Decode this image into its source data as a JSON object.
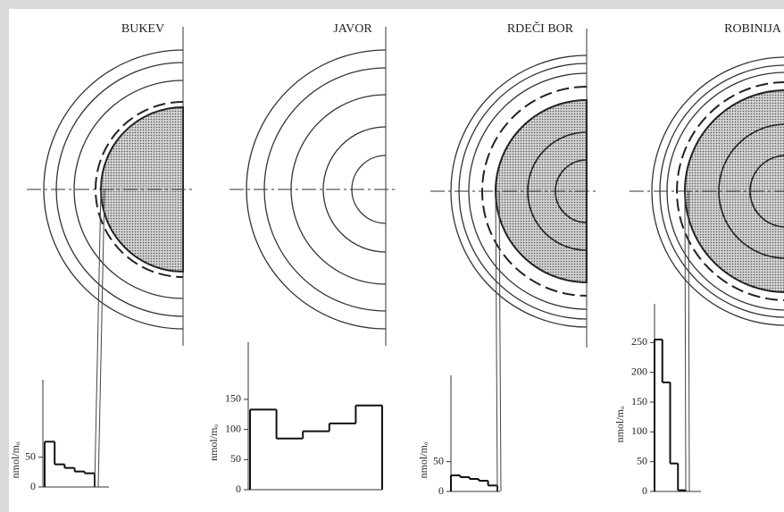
{
  "chart_data": [
    {
      "type": "step",
      "title": "BUKEV",
      "y_label": "nmol/mₒ",
      "values": [
        76,
        38,
        32,
        26,
        23
      ],
      "ylim": [
        0,
        180
      ],
      "yticks": [
        0,
        50
      ],
      "color": "#111111"
    },
    {
      "type": "step",
      "title": "JAVOR",
      "y_label": "nmol/mₒ",
      "values": [
        133,
        85,
        97,
        110,
        140
      ],
      "ylim": [
        0,
        245
      ],
      "yticks": [
        0,
        50,
        100,
        150
      ],
      "color": "#111111"
    },
    {
      "type": "step",
      "title": "RDEČI BOR",
      "y_label": "nmol/mₒ",
      "values": [
        27,
        24,
        21,
        18,
        10
      ],
      "ylim": [
        0,
        195
      ],
      "yticks": [
        0,
        50
      ],
      "color": "#111111"
    },
    {
      "type": "step",
      "title": "ROBINIJA",
      "y_label": "nmol/mₒ",
      "values": [
        255,
        183,
        47,
        2
      ],
      "ylim": [
        0,
        315
      ],
      "yticks": [
        0,
        50,
        100,
        150,
        200,
        250
      ],
      "color": "#111111"
    }
  ]
}
